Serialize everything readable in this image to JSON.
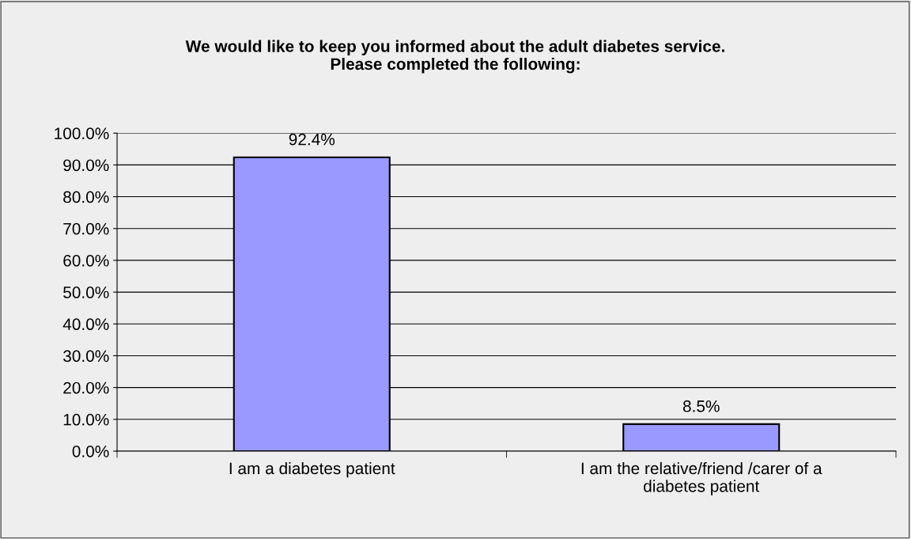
{
  "chart_data": {
    "type": "bar",
    "title": "We would like to keep you informed about the adult diabetes service.\nPlease completed the following:",
    "categories": [
      "I am a diabetes patient",
      "I am the relative/friend /carer of a\ndiabetes patient"
    ],
    "values": [
      92.4,
      8.5
    ],
    "color": "#9999ff",
    "value_labels": [
      "92.4%",
      "8.5%"
    ],
    "ylim": [
      0,
      100
    ],
    "yticks": [
      {
        "value": 0,
        "label": "0.0%"
      },
      {
        "value": 10,
        "label": "10.0%"
      },
      {
        "value": 20,
        "label": "20.0%"
      },
      {
        "value": 30,
        "label": "30.0%"
      },
      {
        "value": 40,
        "label": "40.0%"
      },
      {
        "value": 50,
        "label": "50.0%"
      },
      {
        "value": 60,
        "label": "60.0%"
      },
      {
        "value": 70,
        "label": "70.0%"
      },
      {
        "value": 80,
        "label": "80.0%"
      },
      {
        "value": 90,
        "label": "90.0%"
      },
      {
        "value": 100,
        "label": "100.0%"
      }
    ],
    "grid": "y",
    "legend": false
  }
}
